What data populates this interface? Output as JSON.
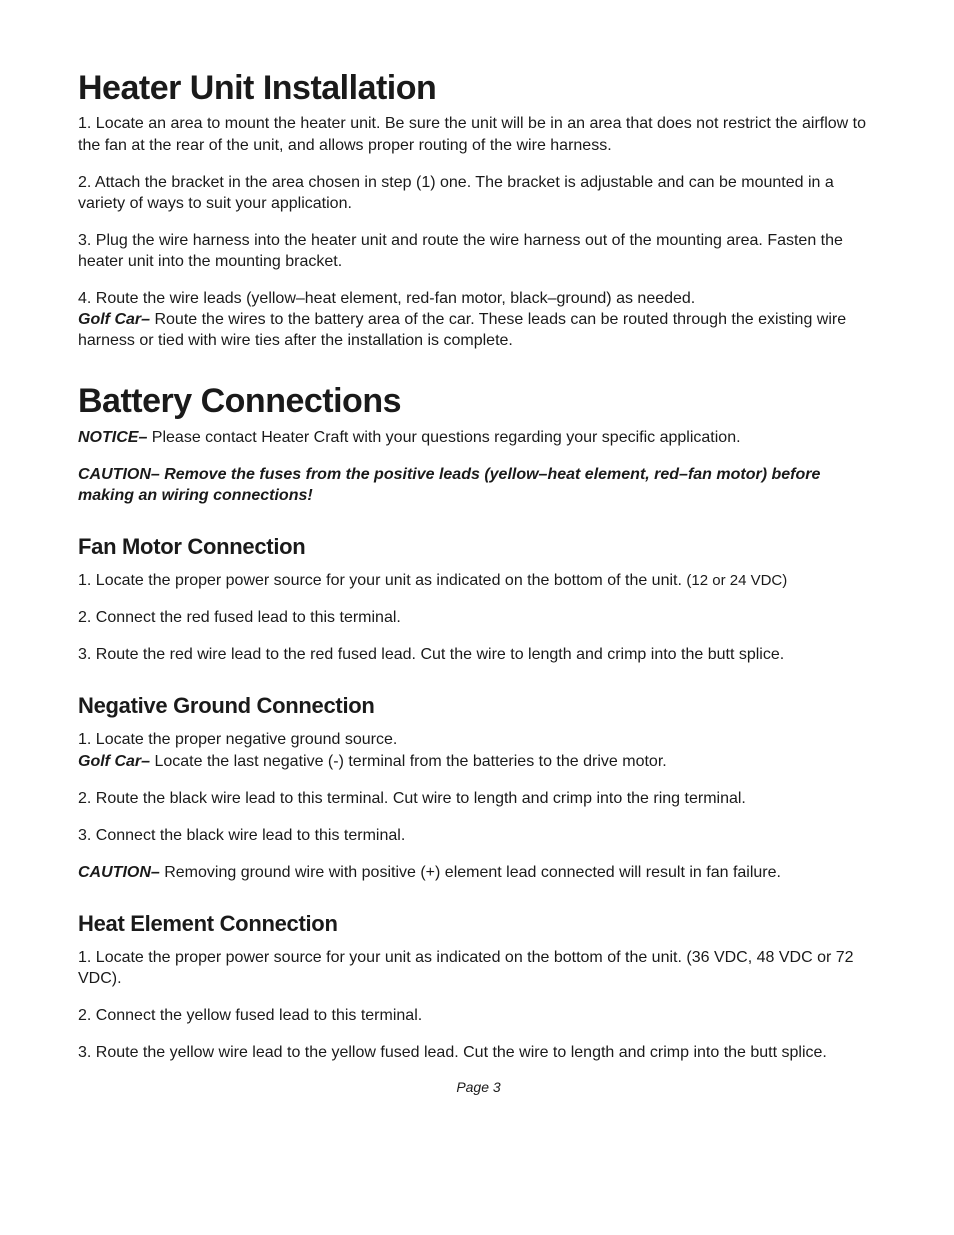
{
  "section1": {
    "title": "Heater Unit Installation",
    "p1": "1. Locate an area to mount the heater unit. Be sure the unit will be in an area that does not restrict the airflow to the fan at the rear of the unit, and allows proper routing of the wire harness.",
    "p2": "2. Attach the bracket in the area chosen in step (1) one. The bracket is adjustable and can be mounted in a variety of ways to suit your application.",
    "p3": "3. Plug the wire harness into the heater unit and route the wire harness out of the mounting area. Fasten the heater unit into the mounting bracket.",
    "p4a": "4. Route the wire leads (yellow–heat element, red-fan motor, black–ground) as needed.",
    "p4b_label": "Golf Car–",
    "p4b_text": " Route the wires to the battery area of the car. These leads can be routed through the existing wire harness or tied with wire ties after the installation is complete."
  },
  "section2": {
    "title": "Battery Connections",
    "notice_label": "NOTICE–",
    "notice_text": " Please contact Heater Craft with your questions regarding your specific application.",
    "caution": "CAUTION– Remove the fuses from the positive leads (yellow–heat element, red–fan motor) before making an wiring connections!"
  },
  "fan": {
    "title": "Fan Motor Connection",
    "p1a": "1. Locate the proper power source for your unit as indicated on the bottom of the unit. ",
    "p1b": "(12 or 24 VDC)",
    "p2": "2. Connect the red fused lead to this terminal.",
    "p3": "3. Route the red wire lead to the red fused lead. Cut the wire to length and crimp into the butt splice."
  },
  "neg": {
    "title": "Negative Ground Connection",
    "p1a": "1. Locate the proper negative ground source.",
    "p1b_label": "Golf Car–",
    "p1b_text": " Locate the last negative (-) terminal from the batteries to the drive motor.",
    "p2": "2. Route the black wire lead to this terminal. Cut wire to length and crimp into the ring terminal.",
    "p3": "3. Connect the black wire lead to this terminal.",
    "caution_label": "CAUTION–",
    "caution_text": " Removing ground wire with positive (+) element lead connected will result in fan failure."
  },
  "heat": {
    "title": "Heat Element Connection",
    "p1": "1. Locate the proper power source for your unit as indicated on the bottom of the unit. (36 VDC, 48 VDC or 72 VDC).",
    "p2": "2. Connect the yellow fused lead to this terminal.",
    "p3": "3. Route the yellow wire lead to the yellow fused lead. Cut the wire to length and crimp into the butt splice."
  },
  "footer": "Page 3"
}
